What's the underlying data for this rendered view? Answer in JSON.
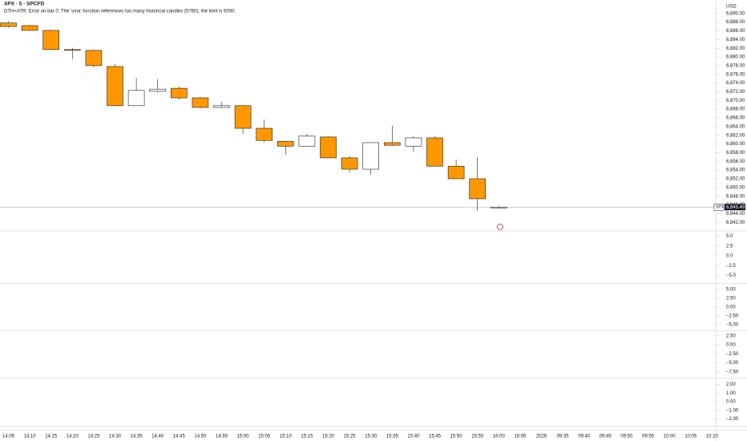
{
  "chart_data": {
    "type": "candlestick",
    "title": "SPX · 5 · SPCFD",
    "subtitle": "DTH+ATR: Error on bar 0: The 'sma' function references too many historical candles (5760), the limit is 5000.",
    "currency": "USD",
    "last_price_symbol": "SPX",
    "last_price": {
      "value": 6845.49,
      "label": "6,845.49"
    },
    "up_color": "#ffffff",
    "down_color": "#ff9800",
    "border_color": "#1e1e1e",
    "categories": [
      "14:05",
      "14:10",
      "14:15",
      "14:20",
      "14:25",
      "14:30",
      "14:35",
      "14:40",
      "14:45",
      "14:50",
      "14:55",
      "15:00",
      "15:05",
      "15:10",
      "15:15",
      "15:20",
      "15:25",
      "15:30",
      "15:35",
      "15:40",
      "15:45",
      "15:50",
      "15:55",
      "16:00",
      "16:05",
      "2026",
      "09:35",
      "09:40",
      "09:45",
      "09:50",
      "09:55",
      "10:00",
      "10:05",
      "10:10"
    ],
    "open": [
      6887.8,
      6887.2,
      6886.1,
      6881.7,
      6881.5,
      6877.8,
      6868.8,
      6872.1,
      6872.8,
      6870.6,
      6868.4,
      6868.8,
      6863.6,
      6860.6,
      6859.5,
      6861.6,
      6856.8,
      6854.2,
      6860.3,
      6859.5,
      6861.4,
      6854.9,
      6852.0,
      6845.3,
      null,
      null,
      null,
      null,
      null,
      null,
      null,
      null,
      null,
      null
    ],
    "high": [
      6888.2,
      6887.4,
      6886.3,
      6882.1,
      6881.7,
      6878.4,
      6875.2,
      6874.9,
      6873.2,
      6870.8,
      6869.7,
      6869.0,
      6865.6,
      6860.8,
      6862.3,
      6861.8,
      6857.3,
      6860.3,
      6864.2,
      6861.8,
      6861.8,
      6856.4,
      6857.0,
      6845.8,
      null,
      null,
      null,
      null,
      null,
      null,
      null,
      null,
      null,
      null
    ],
    "low": [
      6886.7,
      6886.0,
      6881.6,
      6879.5,
      6877.6,
      6868.7,
      6868.8,
      6871.9,
      6870.2,
      6868.2,
      6868.2,
      6862.3,
      6860.4,
      6857.5,
      6859.5,
      6856.8,
      6853.4,
      6852.9,
      6859.5,
      6858.2,
      6854.9,
      6852.0,
      6844.6,
      6845.3,
      null,
      null,
      null,
      null,
      null,
      null,
      null,
      null,
      null,
      null
    ],
    "close": [
      6887.0,
      6886.1,
      6881.7,
      6881.5,
      6878.0,
      6868.8,
      6872.3,
      6872.6,
      6870.6,
      6868.4,
      6868.8,
      6863.6,
      6860.8,
      6859.5,
      6861.8,
      6856.8,
      6854.2,
      6860.3,
      6859.7,
      6861.4,
      6854.9,
      6852.0,
      6847.4,
      6845.5,
      null,
      null,
      null,
      null,
      null,
      null,
      null,
      null,
      null,
      null
    ],
    "ylim": [
      6840.2,
      6891.8
    ],
    "yticks": [
      {
        "value": 6842,
        "label": "6,842.00"
      },
      {
        "value": 6844,
        "label": "6,844.00"
      },
      {
        "value": 6846,
        "label": "6,846.00"
      },
      {
        "value": 6848,
        "label": "6,848.00"
      },
      {
        "value": 6850,
        "label": "6,850.00"
      },
      {
        "value": 6852,
        "label": "6,852.00"
      },
      {
        "value": 6854,
        "label": "6,854.00"
      },
      {
        "value": 6856,
        "label": "6,856.00"
      },
      {
        "value": 6858,
        "label": "6,858.00"
      },
      {
        "value": 6860,
        "label": "6,860.00"
      },
      {
        "value": 6862,
        "label": "6,862.00"
      },
      {
        "value": 6864,
        "label": "6,864.00"
      },
      {
        "value": 6866,
        "label": "6,866.00"
      },
      {
        "value": 6868,
        "label": "6,868.00"
      },
      {
        "value": 6870,
        "label": "6,870.00"
      },
      {
        "value": 6872,
        "label": "6,872.00"
      },
      {
        "value": 6874,
        "label": "6,874.00"
      },
      {
        "value": 6876,
        "label": "6,876.00"
      },
      {
        "value": 6878,
        "label": "6,878.00"
      },
      {
        "value": 6880,
        "label": "6,880.00"
      },
      {
        "value": 6882,
        "label": "6,882.00"
      },
      {
        "value": 6884,
        "label": "6,884.00"
      },
      {
        "value": 6886,
        "label": "6,886.00"
      },
      {
        "value": 6888,
        "label": "6,888.00"
      },
      {
        "value": 6890,
        "label": "6,890.00"
      }
    ],
    "panes": [
      {
        "ylim": [
          -6.73,
          6.12
        ],
        "yticks": [
          {
            "value": 5,
            "label": "5.0"
          },
          {
            "value": 2.5,
            "label": "2.5"
          },
          {
            "value": 0,
            "label": "0.0"
          },
          {
            "value": -2.5,
            "label": "−2.5"
          },
          {
            "value": -5,
            "label": "−5.0"
          }
        ]
      },
      {
        "ylim": [
          -6.36,
          6.36
        ],
        "yticks": [
          {
            "value": 5,
            "label": "5.00"
          },
          {
            "value": 2.5,
            "label": "2.50"
          },
          {
            "value": 0,
            "label": "0.00"
          },
          {
            "value": -2.5,
            "label": "−2.50"
          },
          {
            "value": -5,
            "label": "−5.00"
          }
        ]
      },
      {
        "ylim": [
          -8.9,
          3.78
        ],
        "yticks": [
          {
            "value": 2.5,
            "label": "2.50"
          },
          {
            "value": 0,
            "label": "0.00"
          },
          {
            "value": -2.5,
            "label": "−2.50"
          },
          {
            "value": -5,
            "label": "−5.00"
          },
          {
            "value": -7.5,
            "label": "−7.50"
          }
        ]
      },
      {
        "ylim": [
          -2.7,
          2.6
        ],
        "yticks": [
          {
            "value": 2,
            "label": "2.00"
          },
          {
            "value": 1,
            "label": "1.00"
          },
          {
            "value": 0,
            "label": "0.00"
          },
          {
            "value": -1,
            "label": "−1.00"
          },
          {
            "value": -2,
            "label": "−2.00"
          }
        ]
      }
    ]
  }
}
